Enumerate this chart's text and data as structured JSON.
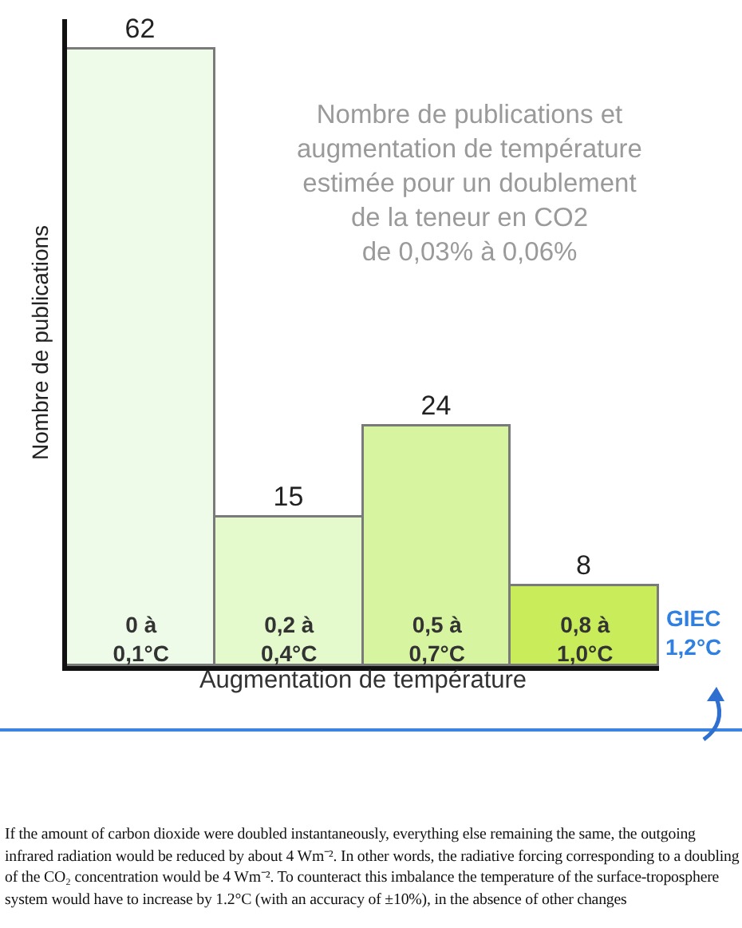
{
  "chart_data": {
    "type": "bar",
    "title": "Nombre de publications et\naugmentation de température\nestimée pour un doublement\nde la teneur en CO2\nde 0,03% à 0,06%",
    "xlabel": "Augmentation de température",
    "ylabel": "Nombre de publications",
    "categories": [
      "0 à\n0,1°C",
      "0,2 à\n0,4°C",
      "0,5 à\n0,7°C",
      "0,8 à\n1,0°C"
    ],
    "values": [
      62,
      15,
      24,
      8
    ],
    "colors": [
      "#eefbe8",
      "#e4f9cc",
      "#d7f5a0",
      "#c8ec5a"
    ],
    "ylim": [
      0,
      65
    ],
    "tick_labels": "x",
    "data_labels": true,
    "grid": false,
    "annotations": [
      "GIEC\n1,2°C",
      "If the amount of carbon dioxide were doubled instantaneously, everything else remaining the same, the outgoing infrared radiation would be reduced by about 4 Wm⁻². In other words, the radiative forcing corresponding to a doubling of the CO₂ concentration would be 4 Wm⁻². To counteract this imbalance the temperature of the surface-troposphere system would have to increase by 1.2°C (with an accuracy of ±10%), in the absence of other changes"
    ]
  }
}
